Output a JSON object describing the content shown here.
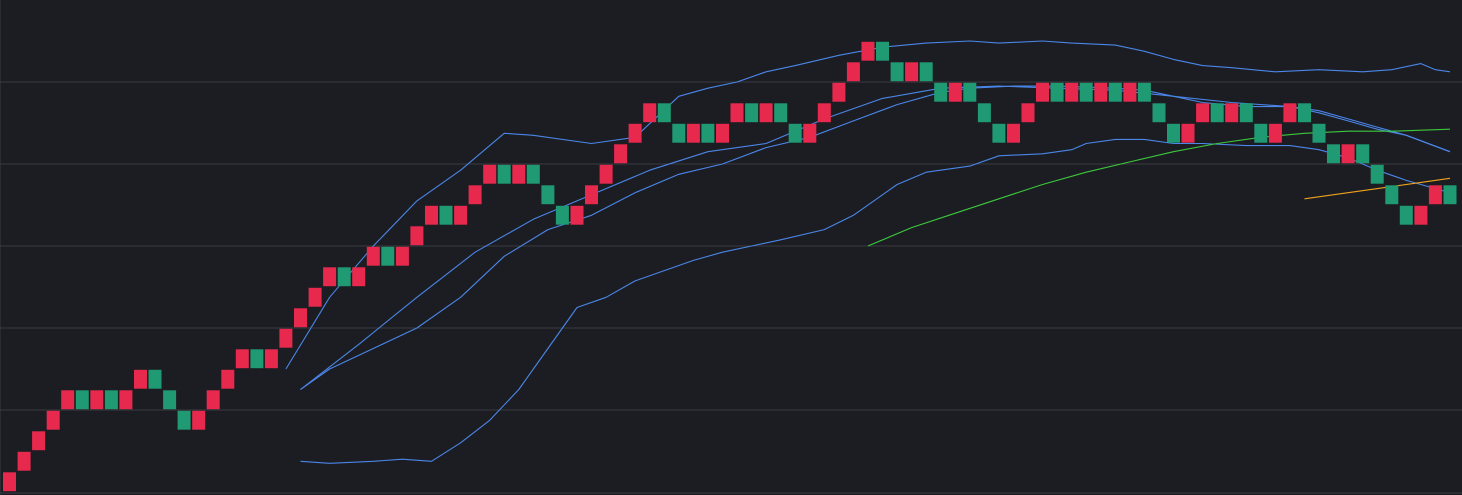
{
  "colors": {
    "background": "#1c1d22",
    "grid": "#3a3b40",
    "up_brick": "#e8294e",
    "down_brick": "#1f9a72",
    "band_line": "#4a86e8",
    "ma_green": "#3cc83c",
    "ma_orange": "#f0a21e"
  },
  "chart_data": {
    "type": "renko",
    "title": "",
    "xlabel": "",
    "ylabel": "",
    "box_size": 1,
    "ylim": [
      0,
      24
    ],
    "x_count": 100,
    "grid": "horizontal",
    "gridlines_y": [
      4,
      8,
      12,
      16,
      20
    ],
    "bricks": [
      {
        "x": 0,
        "low": 0,
        "dir": "up"
      },
      {
        "x": 1,
        "low": 1,
        "dir": "up"
      },
      {
        "x": 2,
        "low": 2,
        "dir": "up"
      },
      {
        "x": 3,
        "low": 3,
        "dir": "up"
      },
      {
        "x": 4,
        "low": 4,
        "dir": "up"
      },
      {
        "x": 5,
        "low": 4,
        "dir": "down"
      },
      {
        "x": 6,
        "low": 4,
        "dir": "up"
      },
      {
        "x": 7,
        "low": 4,
        "dir": "down"
      },
      {
        "x": 8,
        "low": 4,
        "dir": "up"
      },
      {
        "x": 9,
        "low": 5,
        "dir": "up"
      },
      {
        "x": 10,
        "low": 5,
        "dir": "down"
      },
      {
        "x": 11,
        "low": 4,
        "dir": "down"
      },
      {
        "x": 12,
        "low": 3,
        "dir": "down"
      },
      {
        "x": 13,
        "low": 3,
        "dir": "up"
      },
      {
        "x": 14,
        "low": 4,
        "dir": "up"
      },
      {
        "x": 15,
        "low": 5,
        "dir": "up"
      },
      {
        "x": 16,
        "low": 6,
        "dir": "up"
      },
      {
        "x": 17,
        "low": 6,
        "dir": "down"
      },
      {
        "x": 18,
        "low": 6,
        "dir": "up"
      },
      {
        "x": 19,
        "low": 7,
        "dir": "up"
      },
      {
        "x": 20,
        "low": 8,
        "dir": "up"
      },
      {
        "x": 21,
        "low": 9,
        "dir": "up"
      },
      {
        "x": 22,
        "low": 10,
        "dir": "up"
      },
      {
        "x": 23,
        "low": 10,
        "dir": "down"
      },
      {
        "x": 24,
        "low": 10,
        "dir": "up"
      },
      {
        "x": 25,
        "low": 11,
        "dir": "up"
      },
      {
        "x": 26,
        "low": 11,
        "dir": "down"
      },
      {
        "x": 27,
        "low": 11,
        "dir": "up"
      },
      {
        "x": 28,
        "low": 12,
        "dir": "up"
      },
      {
        "x": 29,
        "low": 13,
        "dir": "up"
      },
      {
        "x": 30,
        "low": 13,
        "dir": "down"
      },
      {
        "x": 31,
        "low": 13,
        "dir": "up"
      },
      {
        "x": 32,
        "low": 14,
        "dir": "up"
      },
      {
        "x": 33,
        "low": 15,
        "dir": "up"
      },
      {
        "x": 34,
        "low": 15,
        "dir": "down"
      },
      {
        "x": 35,
        "low": 15,
        "dir": "up"
      },
      {
        "x": 36,
        "low": 15,
        "dir": "down"
      },
      {
        "x": 37,
        "low": 14,
        "dir": "down"
      },
      {
        "x": 38,
        "low": 13,
        "dir": "down"
      },
      {
        "x": 39,
        "low": 13,
        "dir": "up"
      },
      {
        "x": 40,
        "low": 14,
        "dir": "up"
      },
      {
        "x": 41,
        "low": 15,
        "dir": "up"
      },
      {
        "x": 42,
        "low": 16,
        "dir": "up"
      },
      {
        "x": 43,
        "low": 17,
        "dir": "up"
      },
      {
        "x": 44,
        "low": 18,
        "dir": "up"
      },
      {
        "x": 45,
        "low": 18,
        "dir": "down"
      },
      {
        "x": 46,
        "low": 17,
        "dir": "down"
      },
      {
        "x": 47,
        "low": 17,
        "dir": "up"
      },
      {
        "x": 48,
        "low": 17,
        "dir": "down"
      },
      {
        "x": 49,
        "low": 17,
        "dir": "up"
      },
      {
        "x": 50,
        "low": 18,
        "dir": "up"
      },
      {
        "x": 51,
        "low": 18,
        "dir": "down"
      },
      {
        "x": 52,
        "low": 18,
        "dir": "up"
      },
      {
        "x": 53,
        "low": 18,
        "dir": "down"
      },
      {
        "x": 54,
        "low": 17,
        "dir": "down"
      },
      {
        "x": 55,
        "low": 17,
        "dir": "up"
      },
      {
        "x": 56,
        "low": 18,
        "dir": "up"
      },
      {
        "x": 57,
        "low": 19,
        "dir": "up"
      },
      {
        "x": 58,
        "low": 20,
        "dir": "up"
      },
      {
        "x": 59,
        "low": 21,
        "dir": "up"
      },
      {
        "x": 60,
        "low": 21,
        "dir": "down"
      },
      {
        "x": 61,
        "low": 20,
        "dir": "down"
      },
      {
        "x": 62,
        "low": 20,
        "dir": "up"
      },
      {
        "x": 63,
        "low": 20,
        "dir": "down"
      },
      {
        "x": 64,
        "low": 19,
        "dir": "down"
      },
      {
        "x": 65,
        "low": 19,
        "dir": "up"
      },
      {
        "x": 66,
        "low": 19,
        "dir": "down"
      },
      {
        "x": 67,
        "low": 18,
        "dir": "down"
      },
      {
        "x": 68,
        "low": 17,
        "dir": "down"
      },
      {
        "x": 69,
        "low": 17,
        "dir": "up"
      },
      {
        "x": 70,
        "low": 18,
        "dir": "up"
      },
      {
        "x": 71,
        "low": 19,
        "dir": "up"
      },
      {
        "x": 72,
        "low": 19,
        "dir": "down"
      },
      {
        "x": 73,
        "low": 19,
        "dir": "up"
      },
      {
        "x": 74,
        "low": 19,
        "dir": "down"
      },
      {
        "x": 75,
        "low": 19,
        "dir": "up"
      },
      {
        "x": 76,
        "low": 19,
        "dir": "down"
      },
      {
        "x": 77,
        "low": 19,
        "dir": "up"
      },
      {
        "x": 78,
        "low": 19,
        "dir": "down"
      },
      {
        "x": 79,
        "low": 18,
        "dir": "down"
      },
      {
        "x": 80,
        "low": 17,
        "dir": "down"
      },
      {
        "x": 81,
        "low": 17,
        "dir": "up"
      },
      {
        "x": 82,
        "low": 18,
        "dir": "up"
      },
      {
        "x": 83,
        "low": 18,
        "dir": "down"
      },
      {
        "x": 84,
        "low": 18,
        "dir": "up"
      },
      {
        "x": 85,
        "low": 18,
        "dir": "down"
      },
      {
        "x": 86,
        "low": 17,
        "dir": "down"
      },
      {
        "x": 87,
        "low": 17,
        "dir": "up"
      },
      {
        "x": 88,
        "low": 18,
        "dir": "up"
      },
      {
        "x": 89,
        "low": 18,
        "dir": "down"
      },
      {
        "x": 90,
        "low": 17,
        "dir": "down"
      },
      {
        "x": 91,
        "low": 16,
        "dir": "down"
      },
      {
        "x": 92,
        "low": 16,
        "dir": "up"
      },
      {
        "x": 93,
        "low": 16,
        "dir": "down"
      },
      {
        "x": 94,
        "low": 15,
        "dir": "down"
      },
      {
        "x": 95,
        "low": 14,
        "dir": "down"
      },
      {
        "x": 96,
        "low": 13,
        "dir": "down"
      },
      {
        "x": 97,
        "low": 13,
        "dir": "up"
      },
      {
        "x": 98,
        "low": 14,
        "dir": "up"
      },
      {
        "x": 99,
        "low": 14,
        "dir": "down"
      }
    ],
    "series": [
      {
        "role": "upper-band",
        "color": "#4a86e8",
        "points": [
          [
            19,
            6
          ],
          [
            22,
            9.5
          ],
          [
            25,
            12
          ],
          [
            28,
            14.2
          ],
          [
            31,
            15.7
          ],
          [
            34,
            17.5
          ],
          [
            36,
            17.4
          ],
          [
            40,
            17
          ],
          [
            43,
            17.3
          ],
          [
            46,
            19.3
          ],
          [
            48,
            19.7
          ],
          [
            50,
            20
          ],
          [
            52,
            20.5
          ],
          [
            54,
            20.8
          ],
          [
            57,
            21.3
          ],
          [
            60,
            21.7
          ],
          [
            63,
            21.9
          ],
          [
            66,
            22.0
          ],
          [
            68,
            21.9
          ],
          [
            71,
            22.0
          ],
          [
            73,
            21.9
          ],
          [
            76,
            21.8
          ],
          [
            78,
            21.5
          ],
          [
            80,
            21.1
          ],
          [
            82,
            20.8
          ],
          [
            84,
            20.7
          ],
          [
            87,
            20.5
          ],
          [
            90,
            20.6
          ],
          [
            93,
            20.5
          ],
          [
            95,
            20.6
          ],
          [
            97,
            20.9
          ],
          [
            98,
            20.6
          ],
          [
            99,
            20.5
          ]
        ]
      },
      {
        "role": "middle-band",
        "color": "#4a86e8",
        "points": [
          [
            20,
            5
          ],
          [
            22,
            6
          ],
          [
            25,
            7
          ],
          [
            28,
            8
          ],
          [
            31,
            9.5
          ],
          [
            34,
            11.5
          ],
          [
            37,
            12.8
          ],
          [
            40,
            13.5
          ],
          [
            43,
            14.6
          ],
          [
            46,
            15.5
          ],
          [
            49,
            16.0
          ],
          [
            52,
            16.8
          ],
          [
            55,
            17.3
          ],
          [
            58,
            18.1
          ],
          [
            61,
            18.9
          ],
          [
            64,
            19.5
          ],
          [
            66,
            19.7
          ],
          [
            69,
            19.8
          ],
          [
            72,
            19.8
          ],
          [
            76,
            19.7
          ],
          [
            78,
            19.6
          ],
          [
            80,
            19.3
          ],
          [
            82,
            19.0
          ],
          [
            85,
            18.8
          ],
          [
            88,
            18.8
          ],
          [
            90,
            18.5
          ],
          [
            92,
            18.1
          ],
          [
            94,
            17.7
          ],
          [
            96,
            17.4
          ],
          [
            99,
            16.6
          ]
        ]
      },
      {
        "role": "lower-band",
        "color": "#4a86e8",
        "points": [
          [
            20,
            1.5
          ],
          [
            22,
            1.4
          ],
          [
            25,
            1.5
          ],
          [
            27,
            1.6
          ],
          [
            29,
            1.5
          ],
          [
            31,
            2.4
          ],
          [
            33,
            3.5
          ],
          [
            35,
            5.0
          ],
          [
            37,
            7.0
          ],
          [
            39,
            9.0
          ],
          [
            41,
            9.5
          ],
          [
            43,
            10.3
          ],
          [
            45,
            10.8
          ],
          [
            47,
            11.3
          ],
          [
            49,
            11.7
          ],
          [
            51,
            12.0
          ],
          [
            53,
            12.3
          ],
          [
            56,
            12.8
          ],
          [
            58,
            13.5
          ],
          [
            60,
            14.5
          ],
          [
            61,
            15.0
          ],
          [
            63,
            15.6
          ],
          [
            66,
            15.9
          ],
          [
            68,
            16.4
          ],
          [
            71,
            16.5
          ],
          [
            73,
            16.7
          ],
          [
            74,
            17.0
          ],
          [
            76,
            17.2
          ],
          [
            78,
            17.2
          ],
          [
            80,
            17.0
          ],
          [
            82,
            17.0
          ],
          [
            85,
            16.9
          ],
          [
            88,
            16.9
          ],
          [
            90,
            16.7
          ],
          [
            92,
            16.3
          ],
          [
            94,
            15.7
          ],
          [
            96,
            15.2
          ],
          [
            98,
            14.8
          ],
          [
            99,
            14.6
          ]
        ]
      },
      {
        "role": "fast-ma",
        "color": "#4a86e8",
        "points": [
          [
            20,
            5.0
          ],
          [
            24,
            7.2
          ],
          [
            28,
            9.5
          ],
          [
            32,
            11.7
          ],
          [
            36,
            13.3
          ],
          [
            40,
            14.5
          ],
          [
            44,
            15.7
          ],
          [
            48,
            16.6
          ],
          [
            52,
            17.0
          ],
          [
            56,
            18.2
          ],
          [
            60,
            19.2
          ],
          [
            64,
            19.7
          ],
          [
            68,
            19.8
          ],
          [
            72,
            19.7
          ],
          [
            76,
            19.6
          ],
          [
            80,
            19.3
          ],
          [
            84,
            19.0
          ],
          [
            88,
            18.8
          ],
          [
            90,
            18.6
          ],
          [
            92,
            18.2
          ],
          [
            94,
            17.8
          ],
          [
            96,
            17.4
          ],
          [
            99,
            16.6
          ]
        ]
      },
      {
        "role": "slow-ma",
        "color": "#3cc83c",
        "points": [
          [
            59,
            12.0
          ],
          [
            62,
            12.9
          ],
          [
            65,
            13.6
          ],
          [
            68,
            14.3
          ],
          [
            71,
            15.0
          ],
          [
            74,
            15.6
          ],
          [
            77,
            16.1
          ],
          [
            80,
            16.6
          ],
          [
            83,
            17.0
          ],
          [
            86,
            17.3
          ],
          [
            89,
            17.5
          ],
          [
            92,
            17.6
          ],
          [
            95,
            17.6
          ],
          [
            99,
            17.7
          ]
        ]
      },
      {
        "role": "long-ma",
        "color": "#f0a21e",
        "points": [
          [
            89,
            14.3
          ],
          [
            92,
            14.6
          ],
          [
            95,
            14.9
          ],
          [
            97,
            15.1
          ],
          [
            99,
            15.3
          ]
        ]
      }
    ]
  }
}
